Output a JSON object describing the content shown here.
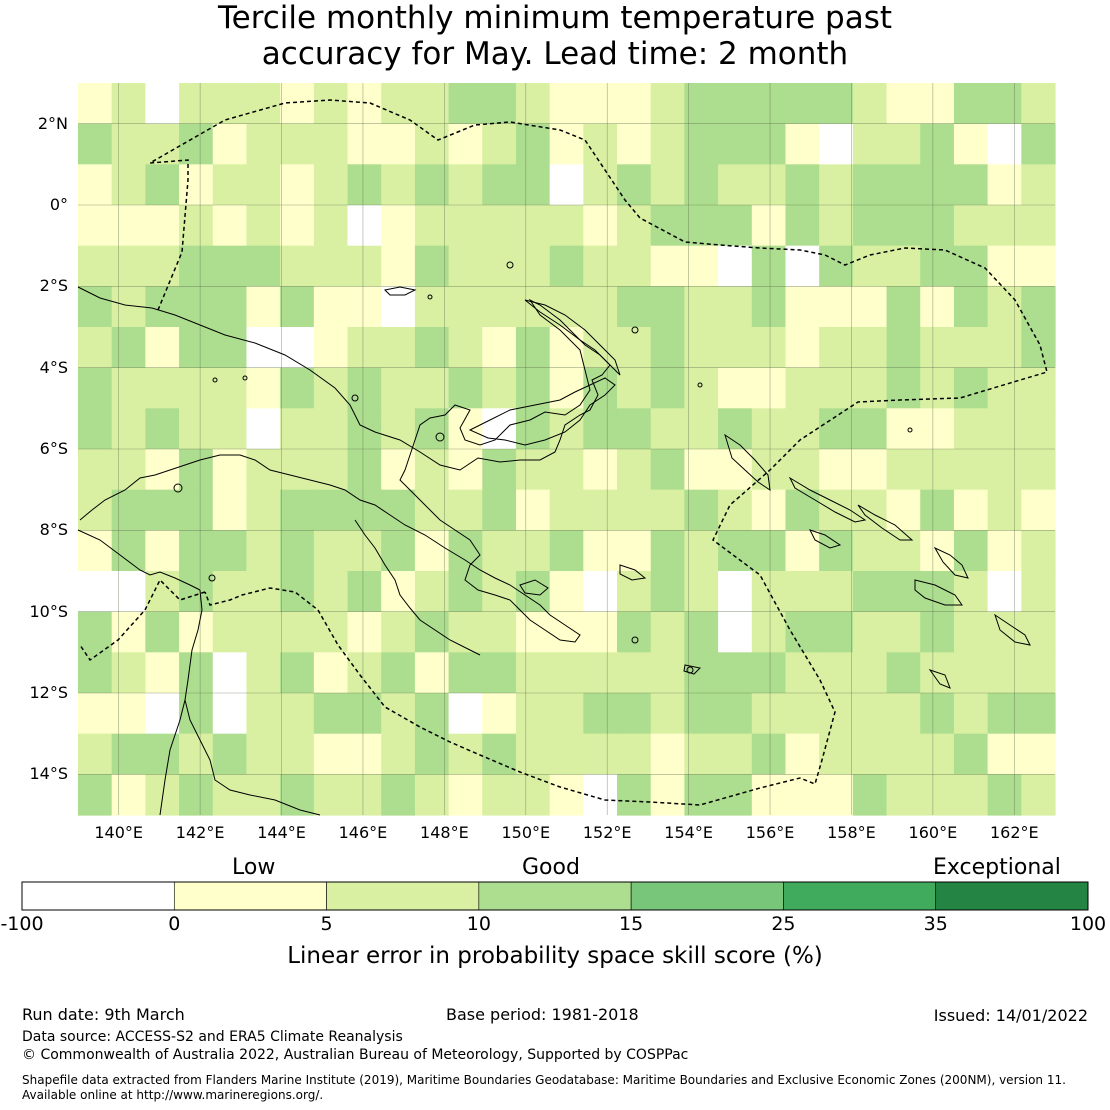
{
  "title": {
    "line1": "Tercile monthly minimum temperature past",
    "line2": "accuracy for May. Lead time: 2 month"
  },
  "map": {
    "lon_range": [
      139,
      163
    ],
    "lat_range": [
      -15,
      3
    ],
    "lat_ticks": [
      {
        "value": 2,
        "label": "2°N"
      },
      {
        "value": 0,
        "label": "0°"
      },
      {
        "value": -2,
        "label": "2°S"
      },
      {
        "value": -4,
        "label": "4°S"
      },
      {
        "value": -6,
        "label": "6°S"
      },
      {
        "value": -8,
        "label": "8°S"
      },
      {
        "value": -10,
        "label": "10°S"
      },
      {
        "value": -12,
        "label": "12°S"
      },
      {
        "value": -14,
        "label": "14°S"
      }
    ],
    "lon_ticks": [
      {
        "value": 140,
        "label": "140°E"
      },
      {
        "value": 142,
        "label": "142°E"
      },
      {
        "value": 144,
        "label": "144°E"
      },
      {
        "value": 146,
        "label": "146°E"
      },
      {
        "value": 148,
        "label": "148°E"
      },
      {
        "value": 150,
        "label": "150°E"
      },
      {
        "value": 152,
        "label": "152°E"
      },
      {
        "value": 154,
        "label": "154°E"
      },
      {
        "value": 156,
        "label": "156°E"
      },
      {
        "value": 158,
        "label": "158°E"
      },
      {
        "value": 160,
        "label": "160°E"
      },
      {
        "value": 162,
        "label": "162°E"
      }
    ]
  },
  "colorbar": {
    "categories": [
      "Low",
      "Good",
      "Exceptional"
    ],
    "bins": [
      {
        "from": -100,
        "to": 0,
        "color": "#ffffff"
      },
      {
        "from": 0,
        "to": 5,
        "color": "#ffffcc"
      },
      {
        "from": 5,
        "to": 10,
        "color": "#d9f0a3"
      },
      {
        "from": 10,
        "to": 15,
        "color": "#addd8e"
      },
      {
        "from": 15,
        "to": 25,
        "color": "#78c679"
      },
      {
        "from": 25,
        "to": 35,
        "color": "#41ab5d"
      },
      {
        "from": 35,
        "to": 100,
        "color": "#238443"
      }
    ],
    "tick_labels": [
      "-100",
      "0",
      "5",
      "10",
      "15",
      "25",
      "35",
      "100"
    ],
    "axis_label": "Linear error in probability space skill score (%)"
  },
  "footer": {
    "run_date": "Run date: 9th March",
    "base_period": "Base period: 1981-2018",
    "issued": "Issued: 14/01/2022",
    "data_source": "Data source: ACCESS-S2 and ERA5 Climate Reanalysis",
    "copyright": "© Commonwealth of Australia 2022, Australian Bureau of Meteorology, Supported by COSPPac",
    "shapefile_line1": "Shapefile data extracted from Flanders Marine Institute (2019), Maritime Boundaries Geodatabase: Maritime Boundaries and Exclusive Economic Zones (200NM), version 11.",
    "shapefile_line2": "Available online at http://www.marineregions.org/."
  }
}
